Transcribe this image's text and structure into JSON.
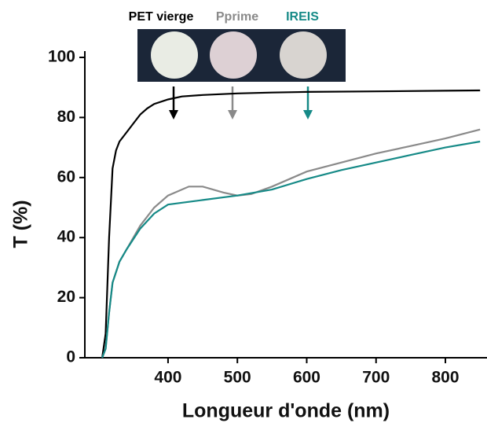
{
  "chart_data": {
    "type": "line",
    "xlabel": "Longueur d'onde (nm)",
    "ylabel": "T (%)",
    "xlim": [
      280,
      860
    ],
    "ylim": [
      0,
      100
    ],
    "xticks": [
      400,
      500,
      600,
      700,
      800
    ],
    "yticks": [
      0,
      20,
      40,
      60,
      80,
      100
    ],
    "series": [
      {
        "name": "PET vierge",
        "color": "#000000",
        "x": [
          305,
          310,
          315,
          320,
          325,
          330,
          340,
          350,
          360,
          370,
          380,
          400,
          420,
          450,
          500,
          550,
          600,
          700,
          800,
          850
        ],
        "values": [
          0,
          8,
          40,
          63,
          69,
          72,
          75,
          78,
          81,
          83,
          84.5,
          86,
          87,
          87.5,
          88,
          88.3,
          88.5,
          88.7,
          88.9,
          89
        ]
      },
      {
        "name": "Pprime",
        "color": "#8a8a8a",
        "x": [
          305,
          310,
          315,
          320,
          330,
          340,
          360,
          380,
          400,
          430,
          450,
          480,
          500,
          520,
          550,
          600,
          650,
          700,
          750,
          800,
          850
        ],
        "values": [
          0,
          3,
          15,
          25,
          32,
          36,
          44,
          50,
          54,
          57,
          57,
          55,
          54,
          54.5,
          57,
          62,
          65,
          68,
          70.5,
          73,
          76
        ]
      },
      {
        "name": "IREIS",
        "color": "#168a87",
        "x": [
          305,
          310,
          315,
          320,
          330,
          340,
          360,
          380,
          400,
          450,
          500,
          550,
          600,
          650,
          700,
          750,
          800,
          850
        ],
        "values": [
          0,
          3,
          15,
          25,
          32,
          36,
          43,
          48,
          51,
          52.5,
          54,
          56,
          59.5,
          62.5,
          65,
          67.5,
          70,
          72
        ]
      }
    ]
  }
}
